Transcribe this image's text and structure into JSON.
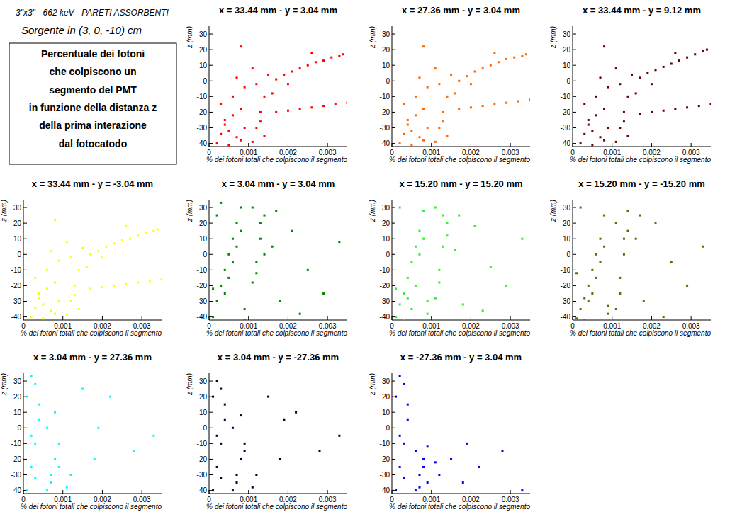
{
  "header": {
    "line1": "3\"x3\" - 662 keV - PARETI ASSORBENTI",
    "line2": "Sorgente in (3, 0, -10) cm",
    "box": [
      "Percentuale dei fotoni",
      "che colpiscono un",
      "segmento del PMT",
      "in funzione della distanza z",
      "della prima interazione",
      "dal fotocatodo"
    ]
  },
  "chart_data": [
    {
      "type": "scatter",
      "title": "x = 33.44 mm - y = 3.04 mm",
      "x_label": "% dei fotoni totali che colpiscono il segmento",
      "y_label": "z (mm)",
      "color": "#ff0000",
      "marker": "square",
      "xlim": [
        0,
        0.0035
      ],
      "ylim": [
        -42,
        35
      ],
      "xticks": [
        0,
        0.001,
        0.002,
        0.003
      ],
      "yticks": [
        -40,
        -30,
        -20,
        -10,
        0,
        10,
        20,
        30
      ],
      "x": [
        0.0002,
        0.0003,
        0.0004,
        0.0005,
        0.0006,
        0.0007,
        0.0008,
        0.0009,
        0.0003,
        0.0006,
        0.0009,
        0.0004,
        0.0008,
        0.0007,
        0.0005,
        0.0011,
        0.0012,
        0.0013,
        0.0014,
        0.0012,
        0.0015,
        0.0011,
        0.0013,
        0.0014,
        0.0017,
        0.0019,
        0.0021,
        0.0023,
        0.0025,
        0.0027,
        0.0029,
        0.0031,
        0.0033,
        0.0034,
        0.002,
        0.0026,
        0.0017,
        0.002,
        0.0023,
        0.0026,
        0.0029,
        0.0032,
        0.0035,
        0.0008,
        0.0016
      ],
      "values": [
        -40,
        -34,
        -28,
        -41,
        -22,
        -36,
        -18,
        -30,
        -15,
        -10,
        -4,
        -25,
        -38,
        2,
        -32,
        -39,
        -30,
        -20,
        -10,
        -2,
        4,
        8,
        -26,
        -35,
        1,
        4,
        6,
        8,
        10,
        12,
        13,
        15,
        16,
        17,
        -2,
        18,
        -20,
        -19,
        -18,
        -17,
        -16,
        -15,
        -14,
        22,
        -8
      ]
    },
    {
      "type": "scatter",
      "title": "x = 27.36 mm - y = 3.04 mm",
      "x_label": "% dei fotoni totali che colpiscono il segmento",
      "y_label": "z (mm)",
      "color": "#ff6600",
      "marker": "square",
      "xlim": [
        0,
        0.0035
      ],
      "ylim": [
        -42,
        35
      ],
      "xticks": [
        0,
        0.001,
        0.002,
        0.003
      ],
      "yticks": [
        -40,
        -30,
        -20,
        -10,
        0,
        10,
        20,
        30
      ],
      "x": [
        0.0002,
        0.0003,
        0.0004,
        0.0005,
        0.0006,
        0.0007,
        0.0008,
        0.0009,
        0.0003,
        0.0006,
        0.0009,
        0.0004,
        0.0008,
        0.0007,
        0.0005,
        0.0011,
        0.0012,
        0.0013,
        0.0014,
        0.0012,
        0.0015,
        0.0011,
        0.0013,
        0.0014,
        0.0017,
        0.0019,
        0.0021,
        0.0023,
        0.0025,
        0.0027,
        0.0029,
        0.0031,
        0.0033,
        0.0034,
        0.002,
        0.0026,
        0.0017,
        0.002,
        0.0023,
        0.0026,
        0.0029,
        0.0032,
        0.0035,
        0.0008,
        0.0016
      ],
      "values": [
        -40,
        -34,
        -28,
        -41,
        -22,
        -36,
        -18,
        -30,
        -15,
        -10,
        -4,
        -25,
        -38,
        2,
        -32,
        -39,
        -30,
        -20,
        -10,
        -2,
        4,
        8,
        -26,
        -35,
        0,
        3,
        6,
        8,
        10,
        12,
        14,
        15,
        16,
        17,
        -2,
        18,
        -18,
        -17,
        -16,
        -15,
        -14,
        -13,
        -12,
        22,
        -8
      ]
    },
    {
      "type": "scatter",
      "title": "x = 33.44 mm - y = 9.12 mm",
      "x_label": "% dei fotoni totali che colpiscono il segmento",
      "y_label": "z (mm)",
      "color": "#660000",
      "marker": "square",
      "xlim": [
        0,
        0.0035
      ],
      "ylim": [
        -42,
        35
      ],
      "xticks": [
        0,
        0.001,
        0.002,
        0.003
      ],
      "yticks": [
        -40,
        -30,
        -20,
        -10,
        0,
        10,
        20,
        30
      ],
      "x": [
        0.0002,
        0.0003,
        0.0004,
        0.0005,
        0.0006,
        0.0007,
        0.0008,
        0.0009,
        0.0003,
        0.0006,
        0.0009,
        0.0004,
        0.0008,
        0.0007,
        0.0005,
        0.0011,
        0.0012,
        0.0013,
        0.0014,
        0.0012,
        0.0015,
        0.0011,
        0.0013,
        0.0014,
        0.0017,
        0.0019,
        0.0021,
        0.0023,
        0.0025,
        0.0027,
        0.0029,
        0.0031,
        0.0033,
        0.0034,
        0.002,
        0.0026,
        0.0017,
        0.002,
        0.0023,
        0.0026,
        0.0029,
        0.0032,
        0.0035,
        0.0008,
        0.0016
      ],
      "values": [
        -40,
        -34,
        -28,
        -41,
        -22,
        -36,
        -18,
        -30,
        -15,
        -10,
        -4,
        -25,
        -38,
        2,
        -32,
        -39,
        -30,
        -20,
        -10,
        -2,
        4,
        8,
        -26,
        -35,
        2,
        5,
        7,
        9,
        11,
        13,
        15,
        17,
        19,
        20,
        -2,
        18,
        -21,
        -20,
        -19,
        -18,
        -17,
        -16,
        -15,
        22,
        -8
      ]
    },
    {
      "type": "scatter",
      "title": "x = 33.44 mm - y = -3.04 mm",
      "x_label": "% dei fotoni totali che colpiscono il segmento",
      "y_label": "z (mm)",
      "color": "#ffff00",
      "marker": "square",
      "xlim": [
        0,
        0.0035
      ],
      "ylim": [
        -42,
        35
      ],
      "xticks": [
        0,
        0.001,
        0.002,
        0.003
      ],
      "yticks": [
        -40,
        -30,
        -20,
        -10,
        0,
        10,
        20,
        30
      ],
      "x": [
        0.0002,
        0.0003,
        0.0004,
        0.0005,
        0.0006,
        0.0007,
        0.0008,
        0.0009,
        0.0003,
        0.0006,
        0.0009,
        0.0004,
        0.0008,
        0.0007,
        0.0005,
        0.0011,
        0.0012,
        0.0013,
        0.0014,
        0.0012,
        0.0015,
        0.0011,
        0.0013,
        0.0014,
        0.0017,
        0.0019,
        0.0021,
        0.0023,
        0.0025,
        0.0027,
        0.0029,
        0.0031,
        0.0033,
        0.0034,
        0.002,
        0.0026,
        0.0017,
        0.002,
        0.0023,
        0.0026,
        0.0029,
        0.0032,
        0.0035,
        0.0008,
        0.0016
      ],
      "values": [
        -40,
        -34,
        -28,
        -41,
        -22,
        -36,
        -18,
        -30,
        -15,
        -10,
        -4,
        -25,
        -38,
        2,
        -32,
        -39,
        -30,
        -20,
        -10,
        -2,
        4,
        8,
        -26,
        -35,
        0,
        2,
        5,
        7,
        9,
        10,
        12,
        14,
        15,
        16,
        -2,
        18,
        -22,
        -21,
        -20,
        -19,
        -18,
        -17,
        -16,
        22,
        -8
      ]
    },
    {
      "type": "scatter",
      "title": "x = 3.04 mm - y = 3.04 mm",
      "x_label": "% dei fotoni totali che colpiscono il segmento",
      "y_label": "z (mm)",
      "color": "#008800",
      "marker": "square",
      "xlim": [
        0,
        0.0035
      ],
      "ylim": [
        -42,
        35
      ],
      "xticks": [
        0,
        0.001,
        0.002,
        0.003
      ],
      "yticks": [
        -40,
        -30,
        -20,
        -10,
        0,
        10,
        20,
        30
      ],
      "x": [
        0.0001,
        0.0002,
        0.0003,
        0.0004,
        0.0005,
        0.0006,
        0.0007,
        0.0008,
        0.0009,
        0.0002,
        0.0004,
        0.0006,
        0.0008,
        0.0003,
        0.0005,
        0.0007,
        0.0009,
        0.0001,
        0.0011,
        0.0012,
        0.0013,
        0.0014,
        0.0011,
        0.0012,
        0.0013,
        0.0014,
        0.0016,
        0.0018,
        0.0021,
        0.0025,
        0.0029,
        0.0033,
        0.0017,
        0.0023
      ],
      "values": [
        -40,
        -30,
        -20,
        -10,
        0,
        10,
        20,
        30,
        -35,
        25,
        -25,
        -5,
        15,
        33,
        -15,
        5,
        -42,
        -22,
        -18,
        -5,
        10,
        25,
        30,
        -12,
        20,
        0,
        5,
        -30,
        15,
        -10,
        -25,
        8,
        28,
        -38
      ]
    },
    {
      "type": "scatter",
      "title": "x = 15.20 mm - y = 15.20 mm",
      "x_label": "% dei fotoni totali che colpiscono il segmento",
      "y_label": "z (mm)",
      "color": "#33ee33",
      "marker": "square",
      "xlim": [
        0,
        0.0035
      ],
      "ylim": [
        -42,
        35
      ],
      "xticks": [
        0,
        0.001,
        0.002,
        0.003
      ],
      "yticks": [
        -40,
        -30,
        -20,
        -10,
        0,
        10,
        20,
        30
      ],
      "x": [
        0.0001,
        0.0002,
        0.0003,
        0.0004,
        0.0005,
        0.0006,
        0.0007,
        0.0008,
        0.0009,
        0.0002,
        0.0004,
        0.0006,
        0.0008,
        0.0003,
        0.0005,
        0.0007,
        0.0009,
        0.0001,
        0.0011,
        0.0012,
        0.0013,
        0.0014,
        0.0011,
        0.0012,
        0.0013,
        0.0014,
        0.0016,
        0.0018,
        0.0021,
        0.0025,
        0.0029,
        0.0033,
        0.0017,
        0.0023
      ],
      "values": [
        -40,
        -32,
        -25,
        -15,
        -5,
        5,
        15,
        28,
        -38,
        30,
        -28,
        -20,
        10,
        -42,
        -35,
        0,
        -30,
        -22,
        -28,
        -10,
        5,
        20,
        30,
        -18,
        25,
        12,
        3,
        -32,
        18,
        -8,
        -20,
        10,
        25,
        -36
      ]
    },
    {
      "type": "scatter",
      "title": "x = 15.20 mm - y = -15.20 mm",
      "x_label": "% dei fotoni totali che colpiscono il segmento",
      "y_label": "z (mm)",
      "color": "#666600",
      "marker": "square",
      "xlim": [
        0,
        0.0035
      ],
      "ylim": [
        -42,
        35
      ],
      "xticks": [
        0,
        0.001,
        0.002,
        0.003
      ],
      "yticks": [
        -40,
        -30,
        -20,
        -10,
        0,
        10,
        20,
        30
      ],
      "x": [
        0.0001,
        0.0002,
        0.0003,
        0.0004,
        0.0005,
        0.0006,
        0.0007,
        0.0008,
        0.0009,
        0.0002,
        0.0004,
        0.0006,
        0.0008,
        0.0003,
        0.0005,
        0.0007,
        0.0009,
        0.0001,
        0.0011,
        0.0012,
        0.0013,
        0.0014,
        0.0011,
        0.0012,
        0.0013,
        0.0014,
        0.0016,
        0.0018,
        0.0021,
        0.0025,
        0.0029,
        0.0033,
        0.0017,
        0.0023
      ],
      "values": [
        -41,
        -35,
        -28,
        -20,
        -10,
        0,
        10,
        25,
        -38,
        30,
        -30,
        -15,
        5,
        -42,
        -25,
        -5,
        -33,
        -12,
        -35,
        -15,
        10,
        28,
        20,
        -25,
        0,
        15,
        10,
        -30,
        20,
        -5,
        -20,
        5,
        25,
        -40
      ]
    },
    {
      "type": "scatter",
      "title": "x = 3.04 mm - y = 27.36 mm",
      "x_label": "% dei fotoni totali che colpiscono il segmento",
      "y_label": "z (mm)",
      "color": "#00ffff",
      "marker": "square",
      "xlim": [
        0,
        0.0035
      ],
      "ylim": [
        -42,
        35
      ],
      "xticks": [
        0,
        0.001,
        0.002,
        0.003
      ],
      "yticks": [
        -40,
        -30,
        -20,
        -10,
        0,
        10,
        20,
        30
      ],
      "x": [
        0.0001,
        0.0002,
        0.0003,
        0.0004,
        0.0001,
        0.0002,
        0.0003,
        0.0004,
        0.0002,
        0.0003,
        0.0006,
        0.0007,
        0.0008,
        0.0009,
        0.0006,
        0.0008,
        0.0007,
        0.0009,
        0.0012,
        0.0015,
        0.0018,
        0.0022,
        0.0028,
        0.0033,
        0.0011,
        0.0019
      ],
      "values": [
        -40,
        -25,
        -10,
        5,
        20,
        33,
        -32,
        15,
        -5,
        28,
        -40,
        -30,
        -20,
        -10,
        0,
        10,
        -35,
        -25,
        -30,
        25,
        -20,
        20,
        -15,
        -5,
        -38,
        0
      ]
    },
    {
      "type": "scatter",
      "title": "x = 3.04 mm - y = -27.36 mm",
      "x_label": "% dei fotoni totali che colpiscono il segmento",
      "y_label": "z (mm)",
      "color": "#000033",
      "marker": "square",
      "xlim": [
        0,
        0.0035
      ],
      "ylim": [
        -42,
        35
      ],
      "xticks": [
        0,
        0.001,
        0.002,
        0.003
      ],
      "yticks": [
        -40,
        -30,
        -20,
        -10,
        0,
        10,
        20,
        30
      ],
      "x": [
        0.0001,
        0.0002,
        0.0003,
        0.0004,
        0.0001,
        0.0002,
        0.0003,
        0.0004,
        0.0002,
        0.0003,
        0.0006,
        0.0007,
        0.0008,
        0.0009,
        0.0006,
        0.0008,
        0.0007,
        0.0009,
        0.0012,
        0.0015,
        0.0018,
        0.0022,
        0.0028,
        0.0033,
        0.0011,
        0.0019
      ],
      "values": [
        -40,
        -25,
        -10,
        5,
        20,
        30,
        -32,
        15,
        -5,
        25,
        -40,
        -30,
        -20,
        -10,
        0,
        8,
        -35,
        -15,
        -30,
        20,
        -20,
        10,
        -15,
        -5,
        -38,
        5
      ]
    },
    {
      "type": "scatter",
      "title": "x = -27.36 mm - y = 3.04 mm",
      "x_label": "% dei fotoni totali che colpiscono il segmento",
      "y_label": "z (mm)",
      "color": "#0000ff",
      "marker": "square",
      "xlim": [
        0,
        0.0035
      ],
      "ylim": [
        -42,
        35
      ],
      "xticks": [
        0,
        0.001,
        0.002,
        0.003
      ],
      "yticks": [
        -40,
        -30,
        -20,
        -10,
        0,
        10,
        20,
        30
      ],
      "x": [
        0.0001,
        0.0002,
        0.0003,
        0.0004,
        0.0001,
        0.0002,
        0.0003,
        0.0004,
        0.0002,
        0.0003,
        0.0006,
        0.0007,
        0.0008,
        0.0009,
        0.0006,
        0.0008,
        0.0007,
        0.0009,
        0.0012,
        0.0015,
        0.0018,
        0.0022,
        0.0028,
        0.0033,
        0.0011,
        0.0019
      ],
      "values": [
        -40,
        -25,
        -10,
        5,
        20,
        33,
        -32,
        15,
        -5,
        28,
        -40,
        -30,
        -20,
        -35,
        -15,
        -25,
        -38,
        -12,
        -30,
        -20,
        -35,
        -25,
        -15,
        -40,
        -22,
        -10
      ]
    }
  ]
}
